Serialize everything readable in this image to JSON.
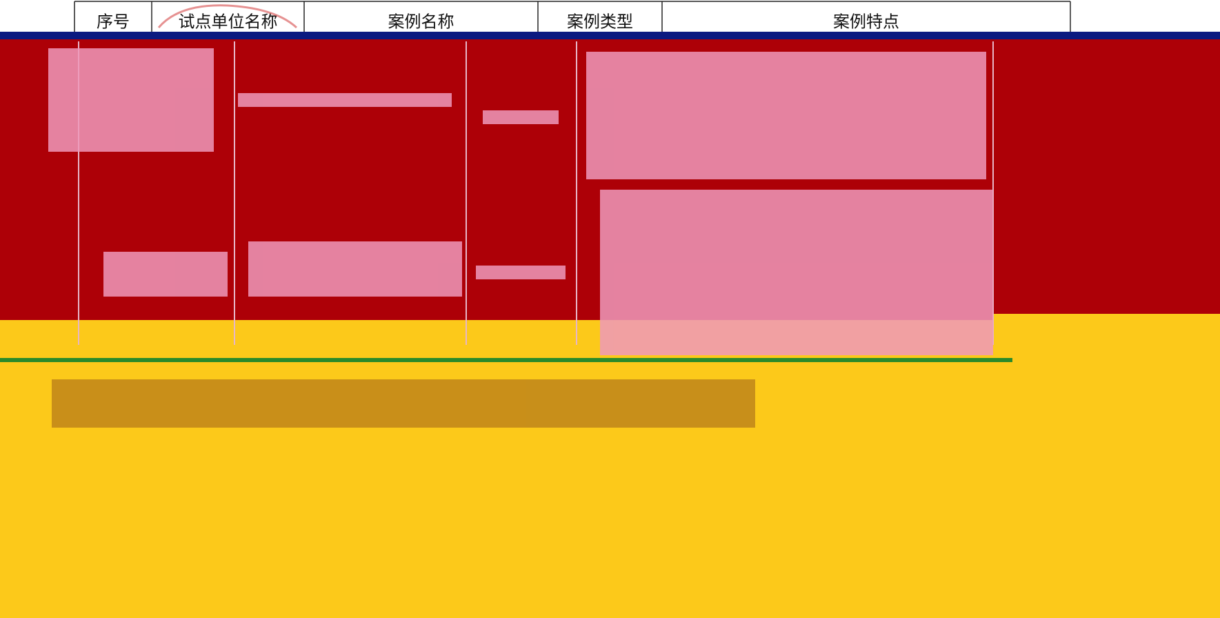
{
  "table": {
    "header": [
      "序号",
      "试点单位名称",
      "案例名称",
      "案例类型",
      "案例特点"
    ]
  }
}
